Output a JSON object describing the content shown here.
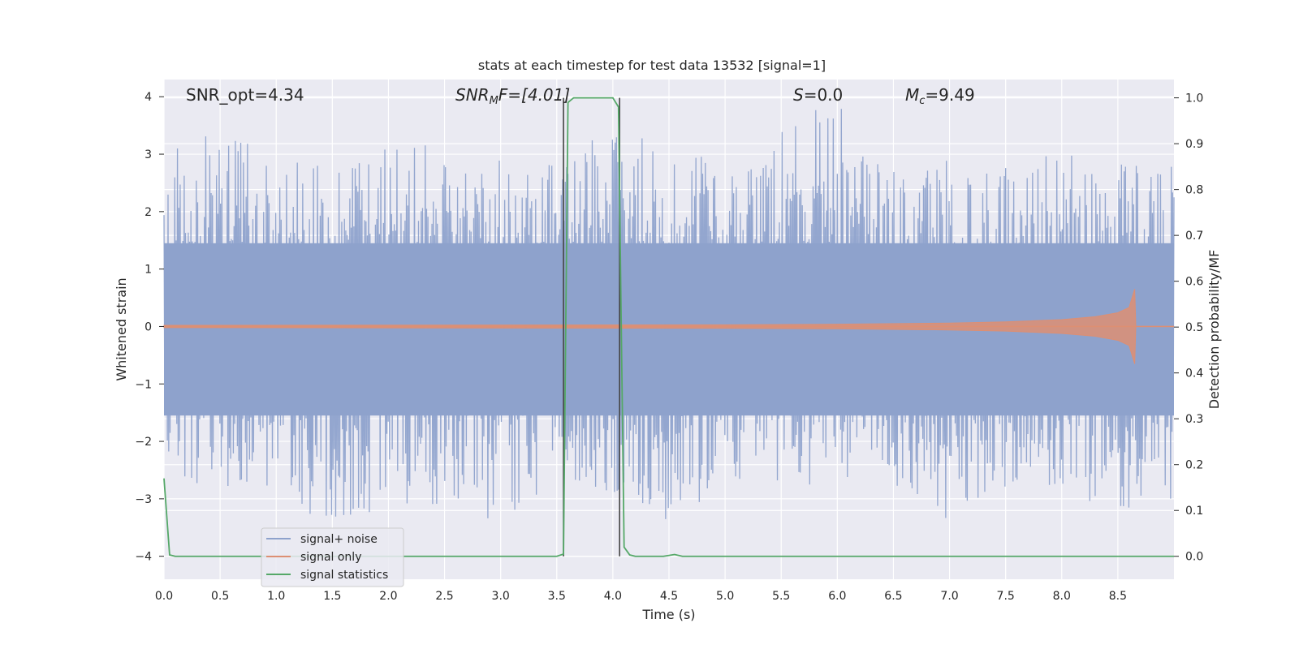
{
  "chart_data": {
    "type": "line",
    "title": "stats at each timestep for test data 13532 [signal=1]",
    "xlabel": "Time (s)",
    "ylabel_left": "Whitened strain",
    "ylabel_right": "Detection probability/MF",
    "xlim": [
      0.0,
      9.0
    ],
    "ylim_left": [
      -4.4,
      4.3
    ],
    "ylim_right": [
      -0.05,
      1.04
    ],
    "x_ticks": [
      "0.0",
      "0.5",
      "1.0",
      "1.5",
      "2.0",
      "2.5",
      "3.0",
      "3.5",
      "4.0",
      "4.5",
      "5.0",
      "5.5",
      "6.0",
      "6.5",
      "7.0",
      "7.5",
      "8.0",
      "8.5"
    ],
    "y_left_ticks": [
      "4",
      "3",
      "2",
      "1",
      "0",
      "−1",
      "−2",
      "−3",
      "−4"
    ],
    "y_right_ticks": [
      "1.0",
      "0.9",
      "0.8",
      "0.7",
      "0.6",
      "0.5",
      "0.4",
      "0.3",
      "0.2",
      "0.1",
      "0.0"
    ],
    "grid": true,
    "legend_position": "lower-left",
    "annotations": {
      "snr_opt": "SNR_opt=4.34",
      "snr_mf_main": "SNR",
      "snr_mf_sub": "M",
      "snr_mf_rest": "F=[4.01]",
      "s_main": "S",
      "s_rest": "=0.0",
      "mc_main": "M",
      "mc_sub": "c",
      "mc_rest": "=9.49"
    },
    "series": [
      {
        "name": "signal+ noise",
        "color": "#8ea2cc",
        "axis": "left",
        "description_values": "noise envelope",
        "envelope_x": [
          0.0,
          0.5,
          1.0,
          1.5,
          2.0,
          2.5,
          3.0,
          3.5,
          4.0,
          4.5,
          5.0,
          5.5,
          6.0,
          6.5,
          7.0,
          7.5,
          8.0,
          8.5,
          9.0
        ],
        "envelope_max": [
          3.0,
          3.55,
          2.8,
          3.0,
          3.2,
          3.15,
          3.0,
          3.0,
          3.7,
          3.1,
          2.9,
          3.6,
          3.9,
          2.7,
          3.1,
          2.9,
          3.0,
          3.05,
          2.9
        ],
        "envelope_min": [
          -2.7,
          -2.9,
          -3.15,
          -3.6,
          -3.1,
          -3.1,
          -3.5,
          -3.0,
          -3.0,
          -3.4,
          -2.8,
          -2.9,
          -2.7,
          -2.8,
          -3.4,
          -2.8,
          -2.9,
          -3.25,
          -3.1
        ]
      },
      {
        "name": "signal only",
        "color": "#dd8f73",
        "axis": "left",
        "x": [
          0.0,
          5.0,
          6.0,
          7.0,
          7.5,
          8.0,
          8.3,
          8.5,
          8.6,
          8.65,
          8.66
        ],
        "amplitude": [
          0.02,
          0.03,
          0.04,
          0.06,
          0.08,
          0.12,
          0.17,
          0.24,
          0.33,
          0.65,
          0.0
        ]
      },
      {
        "name": "signal statistics",
        "color": "#55a868",
        "axis": "right",
        "x": [
          0.0,
          0.05,
          0.1,
          3.5,
          3.56,
          3.6,
          3.65,
          4.0,
          4.05,
          4.1,
          4.15,
          4.2,
          4.45,
          4.55,
          4.62,
          9.0
        ],
        "values": [
          0.17,
          0.003,
          0.0,
          0.0,
          0.005,
          0.99,
          1.0,
          1.0,
          0.98,
          0.02,
          0.003,
          0.0,
          0.0,
          0.004,
          0.0,
          0.0
        ]
      }
    ],
    "vertical_markers_x": [
      3.56,
      4.06
    ]
  }
}
